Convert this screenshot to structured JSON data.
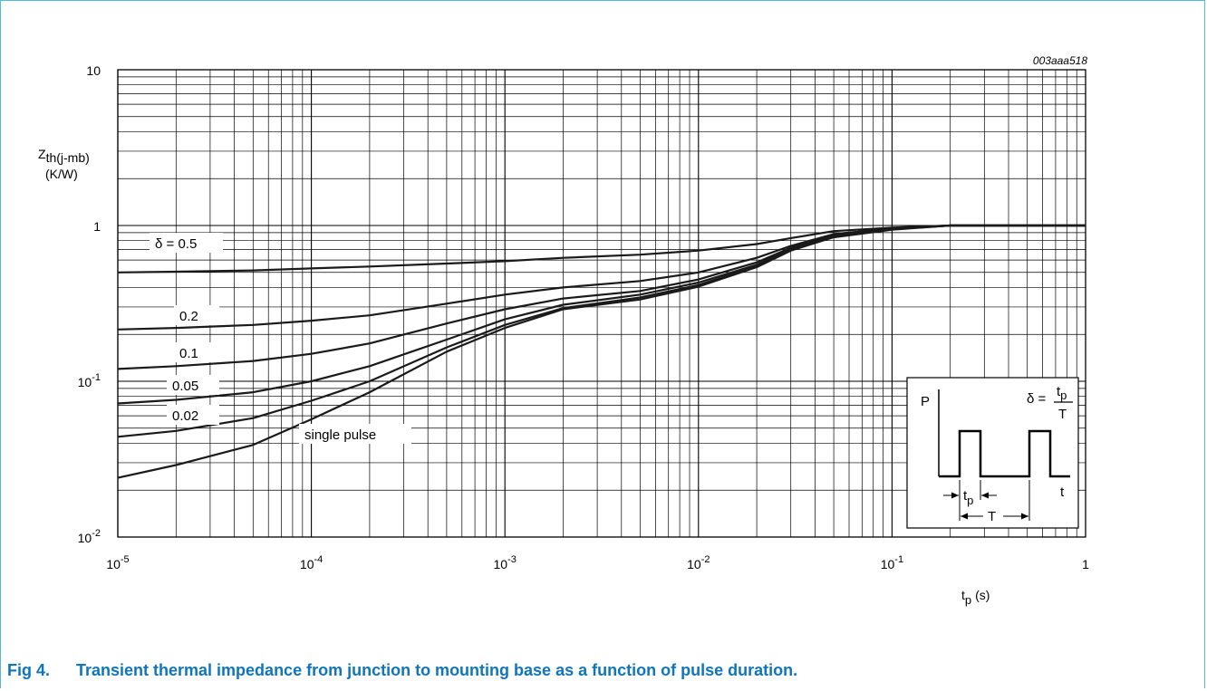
{
  "figure": {
    "number": "Fig 4.",
    "caption": "Transient thermal impedance from junction to mounting base as a function of pulse duration.",
    "code": "003aaa518"
  },
  "colors": {
    "caption": "#0f75bc",
    "frame": "#55b8dd",
    "curve": "#1a1a1a",
    "grid": "#000000"
  },
  "chart_data": {
    "type": "line",
    "x_scale": "log",
    "y_scale": "log",
    "xlim": [
      1e-05,
      1
    ],
    "ylim": [
      0.01,
      10
    ],
    "grid": true,
    "ylabel_main": "Z",
    "ylabel_sub": "th(j-mb)",
    "ylabel_unit": "(K/W)",
    "xlabel_main": "t",
    "xlabel_sub": "p",
    "xlabel_unit": "(s)",
    "x_ticks": [
      {
        "value": 1e-05,
        "base": "10",
        "exp": "-5"
      },
      {
        "value": 0.0001,
        "base": "10",
        "exp": "-4"
      },
      {
        "value": 0.001,
        "base": "10",
        "exp": "-3"
      },
      {
        "value": 0.01,
        "base": "10",
        "exp": "-2"
      },
      {
        "value": 0.1,
        "base": "10",
        "exp": "-1"
      },
      {
        "value": 1,
        "base": "1",
        "exp": ""
      }
    ],
    "y_ticks": [
      {
        "value": 10,
        "base": "10",
        "exp": ""
      },
      {
        "value": 1,
        "base": "1",
        "exp": ""
      },
      {
        "value": 0.1,
        "base": "10",
        "exp": "-1"
      },
      {
        "value": 0.01,
        "base": "10",
        "exp": "-2"
      }
    ],
    "series": [
      {
        "name": "δ = 0.5",
        "x": [
          1e-05,
          2e-05,
          5e-05,
          0.0001,
          0.0002,
          0.0005,
          0.001,
          0.002,
          0.005,
          0.01,
          0.02,
          0.03,
          0.05,
          0.1,
          0.2,
          1
        ],
        "y": [
          0.5,
          0.505,
          0.515,
          0.53,
          0.545,
          0.57,
          0.59,
          0.62,
          0.65,
          0.69,
          0.76,
          0.83,
          0.92,
          0.97,
          1.0,
          1.0
        ]
      },
      {
        "name": "0.2",
        "x": [
          1e-05,
          2e-05,
          5e-05,
          0.0001,
          0.0002,
          0.0005,
          0.001,
          0.002,
          0.005,
          0.01,
          0.02,
          0.03,
          0.05,
          0.1,
          0.2,
          1
        ],
        "y": [
          0.215,
          0.22,
          0.23,
          0.245,
          0.265,
          0.315,
          0.36,
          0.4,
          0.44,
          0.5,
          0.62,
          0.74,
          0.88,
          0.96,
          1.0,
          1.0
        ]
      },
      {
        "name": "0.1",
        "x": [
          1e-05,
          2e-05,
          5e-05,
          0.0001,
          0.0002,
          0.0005,
          0.001,
          0.002,
          0.005,
          0.01,
          0.02,
          0.03,
          0.05,
          0.1,
          0.2,
          1
        ],
        "y": [
          0.12,
          0.125,
          0.135,
          0.15,
          0.175,
          0.235,
          0.29,
          0.34,
          0.38,
          0.45,
          0.58,
          0.72,
          0.87,
          0.955,
          1.0,
          1.0
        ]
      },
      {
        "name": "0.05",
        "x": [
          1e-05,
          2e-05,
          5e-05,
          0.0001,
          0.0002,
          0.0005,
          0.001,
          0.002,
          0.005,
          0.01,
          0.02,
          0.03,
          0.05,
          0.1,
          0.2,
          1
        ],
        "y": [
          0.072,
          0.076,
          0.085,
          0.1,
          0.125,
          0.185,
          0.25,
          0.31,
          0.36,
          0.43,
          0.56,
          0.71,
          0.86,
          0.95,
          1.0,
          1.0
        ]
      },
      {
        "name": "0.02",
        "x": [
          1e-05,
          2e-05,
          5e-05,
          0.0001,
          0.0002,
          0.0005,
          0.001,
          0.002,
          0.005,
          0.01,
          0.02,
          0.03,
          0.05,
          0.1,
          0.2,
          1
        ],
        "y": [
          0.044,
          0.048,
          0.058,
          0.075,
          0.1,
          0.165,
          0.23,
          0.295,
          0.345,
          0.415,
          0.55,
          0.7,
          0.85,
          0.945,
          1.0,
          1.0
        ]
      },
      {
        "name": "single pulse",
        "x": [
          1e-05,
          2e-05,
          5e-05,
          0.0001,
          0.0002,
          0.0005,
          0.001,
          0.002,
          0.005,
          0.01,
          0.02,
          0.03,
          0.05,
          0.1,
          0.2,
          1
        ],
        "y": [
          0.024,
          0.029,
          0.039,
          0.057,
          0.085,
          0.155,
          0.22,
          0.29,
          0.335,
          0.405,
          0.54,
          0.69,
          0.84,
          0.94,
          1.0,
          1.0
        ]
      }
    ],
    "curve_labels": [
      {
        "text": "δ = 0.5"
      },
      {
        "text": "0.2"
      },
      {
        "text": "0.1"
      },
      {
        "text": "0.05"
      },
      {
        "text": "0.02"
      },
      {
        "text": "single pulse"
      }
    ],
    "inset": {
      "p_label": "P",
      "t_label": "t",
      "tp_main": "t",
      "tp_sub": "p",
      "T_label": "T",
      "delta": "δ =",
      "frac_num_main": "t",
      "frac_num_sub": "p",
      "frac_den": "T"
    }
  }
}
